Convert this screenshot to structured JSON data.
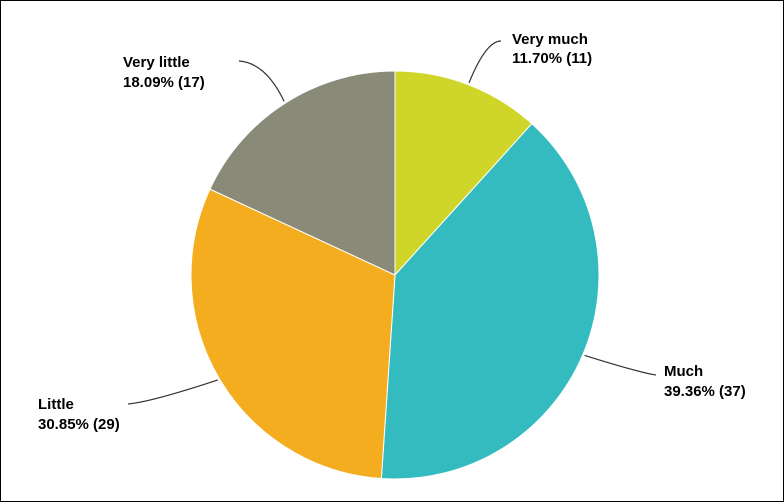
{
  "chart_data": {
    "type": "pie",
    "slices": [
      {
        "label": "Very much",
        "percent_text": "11.70% (11)",
        "percent": 11.7,
        "count": 11,
        "color": "#d0d52a"
      },
      {
        "label": "Much",
        "percent_text": "39.36% (37)",
        "percent": 39.36,
        "count": 37,
        "color": "#33bbbf"
      },
      {
        "label": "Little",
        "percent_text": "30.85% (29)",
        "percent": 30.85,
        "count": 29,
        "color": "#f5ad20"
      },
      {
        "label": "Very little",
        "percent_text": "18.09% (17)",
        "percent": 18.09,
        "count": 17,
        "color": "#8a8a78"
      }
    ],
    "start_angle": "12 o'clock",
    "direction": "clockwise",
    "legend": "none",
    "label_line_color": "#333333"
  }
}
